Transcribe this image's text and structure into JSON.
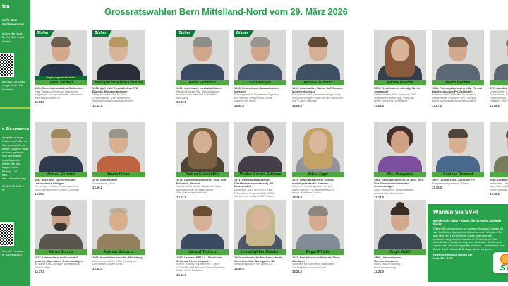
{
  "colors": {
    "svp_green": "#23a24d",
    "sidebar_green": "#2f9e4b",
    "namebar_green": "#4ea83f",
    "ribbon_green": "#087c36",
    "cta_green": "#28a34c",
    "divider_lime": "#aacb37",
    "photo_bg": "#d8d8d6",
    "logo_green": "#00973b",
    "logo_sun": "#f9b233"
  },
  "header": {
    "title": "Grossratswahlen Bern Mittelland-Nord vom 29. März 2026"
  },
  "badges": {
    "bisher": "Bisher"
  },
  "sidebar": {
    "top": {
      "heading": "ten",
      "para1": [
        "mehr über",
        "didatinnen und"
      ],
      "para2": [
        "e über die Quali-",
        "fte der SVP sowie",
        "idaten?"
      ],
      "para3": [
        "ach den QR-Code!",
        "zeuge finden Sie",
        "formieren."
      ]
    },
    "bottom": {
      "heading": "n Sie unseren",
      "para": [
        "kampfteam enga-",
        "Frauen und Männer",
        "isch verursacht ein",
        "bliche Kosten: Plaka-",
        "müssen gedruckt,",
        "und Material im",
        "verteilt werden.",
        "helfen Sie uns,",
        "tragen. Jeder",
        "Beitrag – ist",
        "nen.",
        "Ihre Unterstützung!"
      ],
      "account": [
        "0042 0100 8015 4",
        "rd"
      ],
      "para2": [
        "fach die Funktion",
        "er Banking-App."
      ]
    }
  },
  "candidates": [
    {
      "row": 1,
      "col": 1,
      "bisher": true,
      "pretitle": "Regierungsratskandidat",
      "name": "Daniel Bichsel",
      "info": "1969, Gemeindepräsident, Zollikofen",
      "lines": [
        "Präs. Verband Bernischer Gemeinden",
        "bürgernah - lösungsorientiert - verlässlich",
        "www.daniel-bichsel.ch"
      ],
      "number": "13.01.3",
      "avatar": {
        "style": "short",
        "hair": "#6f6152",
        "suit": "#243446",
        "skin": "#d2a98d"
      }
    },
    {
      "row": 1,
      "col": 2,
      "bisher": true,
      "name": "Annegret Hebeisen-Christen",
      "info": "1966, dipl. KMU Geschäftsfrau EFZ, Bäuerin, Münchenbuchsee",
      "lines": [
        "Vizepräsidentin GPB Kt. Bern,",
        "Gemeinderätin, VRP Anthera AG",
        "vernetzt-engagiert-lösungsorientiert"
      ],
      "number": "13.02.1",
      "avatar": {
        "style": "short",
        "hair": "#b5995e",
        "suit": "#2a2e38",
        "skin": "#d8b49a"
      }
    },
    {
      "row": 1,
      "col": 3,
      "bisher": true,
      "name": "Peter Salzmann",
      "info": "1961, verheiratet, Landwirt, Mülchi",
      "lines": [
        "Mitglied Grosser Rat, Sicherheitskom-",
        "mission, Vize Präsident SVP Mittel-",
        "land-Nord"
      ],
      "number": "13.03.0",
      "avatar": {
        "style": "short",
        "hair": "#8d8d89",
        "suit": "#3a4b63",
        "skin": "#d0a78b"
      }
    },
    {
      "row": 1,
      "col": 4,
      "bisher": true,
      "name": "Kurt Wenger",
      "info": "1965, Unternehmer, Mandatsleiter, Meikirch",
      "lines": [
        "Führungsprofi in Sicherheits-Organisa-",
        "tion Verkehr, Ortspolizei & Armee –",
        "sowie in der Politik"
      ],
      "number": "13.04.0",
      "avatar": {
        "style": "short",
        "hair": "#97958f",
        "suit": "#44546a",
        "skin": "#cfa78d"
      }
    },
    {
      "row": 1,
      "col": 5,
      "bisher": false,
      "name": "Andreas Brunner",
      "info": "1996, Informatiker, Senior SAP Berater, Münchenbuchsee",
      "lines": [
        "Entscheide, die Sachkenntnis zeigen statt",
        "nur gut zu klingen. Politik bei den Menschen.",
        "Klar in den Lösungen."
      ],
      "number": "13.05.0",
      "avatar": {
        "style": "short",
        "hair": "#5f4a33",
        "suit": "#3f5062",
        "skin": "#d6b096"
      }
    },
    {
      "row": 1,
      "col": 6,
      "bisher": false,
      "name": "Nadine Buache",
      "info": "1976, Treuhänderin mit eidg. FA i.A., Jegenstorf",
      "lines": [
        "Gemeinderätin, FiKo, Vorstand SVP",
        "Jegenstorf, Leiterin Jugi, Vizepräsi-",
        "dentin Turnverein Jegenstorf"
      ],
      "number": "13.06.0",
      "avatar": {
        "style": "long",
        "hair": "#8a5a3c",
        "suit": "#343e4c",
        "skin": "#d8b49a"
      }
    },
    {
      "row": 1,
      "col": 7,
      "bisher": false,
      "name": "Marco Bucheli",
      "info": "1983, Führungsfachmann eidg. FA und Betriebsökonom FH, Zollikofen",
      "lines": [
        "Präsident SVP Zollikofen, im Grossen",
        "Gemeinderat, Präsident GPK, Vizeprä-",
        "sident Schwingklub Münchenbuchsee"
      ],
      "number": "13.07.2",
      "avatar": {
        "style": "short",
        "hair": "#6d5d4a",
        "suit": "#5a6774",
        "skin": "#d2a98d"
      }
    },
    {
      "row": 1,
      "col": 8,
      "bisher": false,
      "name": "Mar",
      "info": "1972, Landwirt",
      "lines": [
        "Unternehmer, L",
        "Gemeinderat, V",
        "Finanzen/BINO",
        "Präsident Brunn"
      ],
      "number": "13.08.1",
      "avatar": {
        "style": "short",
        "hair": "#7d7468",
        "suit": "#5b6472",
        "skin": "#d2a98d"
      }
    },
    {
      "row": 2,
      "col": 1,
      "bisher": false,
      "name": "Michael Christen",
      "info": "1987, eidg. dipl. Gärtnermeister, Unternehmer, Bolligen",
      "lines": [
        "Verheiratet, 2 Kinder, Prüfungsexperte",
        "SBV Gärtnermeister, Jodeln & Fischen"
      ],
      "number": "13.09.0",
      "avatar": {
        "style": "short",
        "hair": "#a08a60",
        "suit": "#2e3a4e",
        "skin": "#dab69c"
      }
    },
    {
      "row": 2,
      "col": 2,
      "bisher": false,
      "name": "Bruno Fivian",
      "info": "1973, Unternehmer",
      "lines": [
        "Gemeinderat, Worb"
      ],
      "number": "13.10.2",
      "avatar": {
        "style": "short",
        "hair": "#9a948a",
        "suit": "#c06340",
        "skin": "#d6ae92"
      }
    },
    {
      "row": 2,
      "col": 3,
      "bisher": false,
      "name": "Andrea Geissbühler",
      "info": "1976, Unternehmensleiterin, eidg. dipl. Polizistin, Bäriswil",
      "lines": [
        "Verheiratet, 3 Kinder, Bäuerliche Haus-",
        "haltungsschule, Alt Nationalrätin,",
        "Vize-Gemeindepräsidentin"
      ],
      "number": "13.11.1",
      "avatar": {
        "style": "long",
        "hair": "#7d6143",
        "suit": "#4c4336",
        "skin": "#d6ae92"
      }
    },
    {
      "row": 2,
      "col": 4,
      "bisher": false,
      "name": "Marlise Gerteis-Schwarz",
      "info": "1971, Gemeindepräsidentin, Direktionsassistentin eidg. FA, Moosseedorf",
      "lines": [
        "Landwirtin, MAS WTO/SGS Bern,",
        "Präs. Komm Regionalpolitik RKBM,",
        "Wahlobfrau, Vorstand SVP Frauen"
      ],
      "number": "13.12.0",
      "avatar": {
        "style": "curly",
        "hair": "#473a38",
        "suit": "#443e4a",
        "skin": "#c79a7e"
      }
    },
    {
      "row": 2,
      "col": 5,
      "bisher": false,
      "name": "Silvia Jäger",
      "info": "1974, Geschäftsführerin, Vizege-meindepräsidentin, Urtenen",
      "lines": [
        "Als ehem. Schulinspektorin für eine",
        "starke Bildung. Für gesunde KMU in",
        "einem attraktiven Kanton."
      ],
      "number": "13.13.0",
      "avatar": {
        "style": "long",
        "hair": "#c2a267",
        "suit": "#8f949b",
        "skin": "#dab69c"
      }
    },
    {
      "row": 2,
      "col": 6,
      "bisher": false,
      "name": "Aliki Panayides",
      "info": "1964, Geschäftsführerin, Dr. phil. hist., Vize-Gemeindepräsidentin, Ostermundigen",
      "lines": [
        "GGR, Präsidentin, Polizeibeamten-",
        "verband Bern-Gemeinden"
      ],
      "number": "13.14.0",
      "avatar": {
        "style": "curly",
        "hair": "#44302c",
        "suit": "#7b4f9e",
        "skin": "#cfa183"
      }
    },
    {
      "row": 2,
      "col": 7,
      "bisher": false,
      "name": "Andreas Remund",
      "info": "1979, Landwirt, Ing. Agronom FH",
      "lines": [
        "Vizegemeindepräsident, Wohlen"
      ],
      "number": "13.15.3",
      "avatar": {
        "style": "short",
        "hair": "#51443a",
        "suit": "#49698c",
        "skin": "#d6ae92"
      }
    },
    {
      "row": 2,
      "col": 8,
      "bisher": false,
      "name": "Re",
      "info": "1986, Landwirt",
      "lines": [
        "verheiratet, 3 Ki",
        "Agro-SOL LAND",
        "Seiler, Baninge"
      ],
      "number": "13.16.1",
      "avatar": {
        "style": "short",
        "hair": "#5c5348",
        "suit": "#787c5c",
        "skin": "#d2a98d"
      }
    },
    {
      "row": 3,
      "col": 1,
      "bisher": false,
      "name": "Adrian Butsch",
      "info": "1977, Unternehmer im Automobil-gewerbe, Carrossier, Ostermundigen",
      "lines": [
        "für starke KMU, weniger Bürokratie und",
        "mehr Freiheit"
      ],
      "number": "13.17.0",
      "avatar": {
        "style": "short",
        "hair": "#3d3530",
        "suit": "#5a554e",
        "skin": "#c9a184",
        "beard": true
      }
    },
    {
      "row": 3,
      "col": 2,
      "bisher": false,
      "name": "Andreas Schlecht",
      "info": "1966, Immobilienverkäufer, Mühleberg",
      "lines": [
        "Unternehmensleiter KMU, Arbeitgeber,",
        "Lehrmeister, Bauern-OHA"
      ],
      "number": "13.18.0",
      "avatar": {
        "style": "bald",
        "hair": "#b3a794",
        "suit": "#94805f",
        "skin": "#d8ae8d"
      }
    },
    {
      "row": 3,
      "col": 3,
      "bisher": false,
      "name": "Samuel Tschanz",
      "info": "1993, Landwirt EFZ i.A., Schulleiter, Sekundarlehrer, Limpach",
      "lines": [
        "Komm. Bildung Fraubrunnen, 9 Jahre",
        "GGR Zollikofen, Verband Berner Trachten,",
        "Jodler Chörli Zollikofen"
      ],
      "number": "13.19.0",
      "avatar": {
        "style": "short",
        "hair": "#6b4f33",
        "suit": "#3a4a60",
        "skin": "#d8b096"
      }
    },
    {
      "row": 3,
      "col": 4,
      "bisher": false,
      "name": "Ursula Weber-Zbinden",
      "info": "1960, medizinische Praxisassistentin, Gemeinderätin, Bremgarten BE",
      "lines": [
        "Verwaltungsrätin Erich Weber AG"
      ],
      "number": "13.20.0",
      "avatar": {
        "style": "long",
        "hair": "#c6b68c",
        "suit": "#4b5668",
        "skin": "#d8b49a"
      }
    },
    {
      "row": 3,
      "col": 5,
      "bisher": false,
      "name": "Roger Winkler",
      "info": "1973, Berufsfachschullehrer in Thun, Gümligen",
      "lines": [
        "Volksnah, für Sicherheit, Traditionen",
        "und Freiheit in unserem Land"
      ],
      "number": "13.21.0",
      "avatar": {
        "style": "short",
        "hair": "#8b867e",
        "suit": "#828c98",
        "skin": "#d4ab8f"
      }
    },
    {
      "row": 3,
      "col": 6,
      "bisher": false,
      "name": "Angie Wölfli",
      "info": "1988, Unternehmerin, Herrenschwanden",
      "lines": [
        "Politik braucht Haltung –",
        "keine Inszenierung"
      ],
      "number": "13.22.0",
      "avatar": {
        "style": "bun",
        "hair": "#382d26",
        "suit": "#3e4450",
        "skin": "#d2a98d"
      }
    }
  ],
  "cta": {
    "title": "Wählen Sie SVP!",
    "lead": "Werden Sie aktiv – damit die Schweiz Schweiz bleibt!",
    "body": "Fühlen Sie sich unsicher auf unseren Strassen? Haben Sie das Gefühl, im eigenen Land fremd zu sein? Wundern Sie sich über den Lehrstoff Ihrer Kinder oder über die Umbenennung von Weihnachts- in Wintermärkte? Die unkontrollierte Zuwanderung setzt Schweizer Werte – und sogar unser altehrwürdiges Berndeutsch – zunehmend unter Druck. Es ist höchste Zeit, Gegensteuer zu geben.",
    "closing1": "Helfen Sie mit und wählen Sie",
    "closing2": "Liste 13 – SVP!",
    "logo_text": "SVP"
  }
}
